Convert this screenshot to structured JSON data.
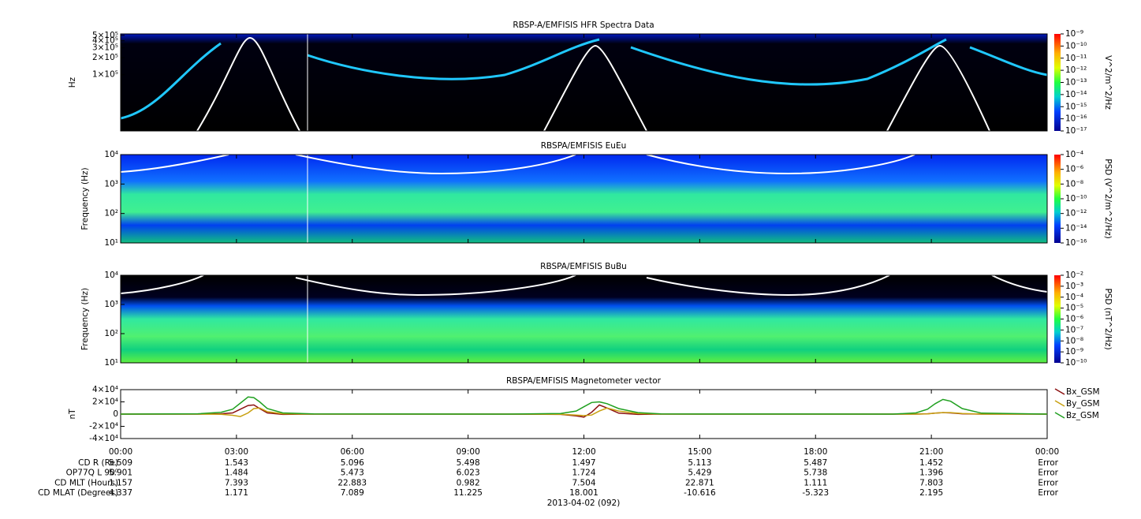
{
  "chart_data": [
    {
      "type": "spectrogram",
      "title": "RBSP-A/EMFISIS  HFR Spectra Data",
      "ylabel": "Hz",
      "log_y": true,
      "ylim": [
        10000,
        530000
      ],
      "yticks": [
        {
          "value": 100000,
          "label": "1×10⁵"
        },
        {
          "value": 200000,
          "label": "2×10⁵"
        },
        {
          "value": 300000,
          "label": "3×10⁵"
        },
        {
          "value": 400000,
          "label": "4×10⁵"
        },
        {
          "value": 500000,
          "label": "5×10⁵"
        }
      ],
      "colorbar_label": "V^2/m^2/Hz",
      "clim": [
        1e-17,
        1e-09
      ],
      "cticks": [
        {
          "value": 1e-09,
          "label": "10⁻⁹"
        },
        {
          "value": 1e-10,
          "label": "10⁻¹⁰"
        },
        {
          "value": 1e-11,
          "label": "10⁻¹¹"
        },
        {
          "value": 1e-12,
          "label": "10⁻¹²"
        },
        {
          "value": 1e-13,
          "label": "10⁻¹³"
        },
        {
          "value": 1e-14,
          "label": "10⁻¹⁴"
        },
        {
          "value": 1e-15,
          "label": "10⁻¹⁵"
        },
        {
          "value": 1e-16,
          "label": "10⁻¹⁶"
        },
        {
          "value": 1e-17,
          "label": "10⁻¹⁷"
        }
      ]
    },
    {
      "type": "spectrogram",
      "title": "RBSPA/EMFISIS  EuEu",
      "ylabel": "Frequency (Hz)",
      "log_y": true,
      "ylim": [
        10,
        10000
      ],
      "yticks": [
        {
          "value": 10,
          "label": "10¹"
        },
        {
          "value": 100,
          "label": "10²"
        },
        {
          "value": 1000,
          "label": "10³"
        },
        {
          "value": 10000,
          "label": "10⁴"
        }
      ],
      "colorbar_label": "PSD (V^2/m^2/Hz)",
      "clim": [
        1e-16,
        0.0001
      ],
      "cticks": [
        {
          "value": 0.0001,
          "label": "10⁻⁴"
        },
        {
          "value": 1e-06,
          "label": "10⁻⁶"
        },
        {
          "value": 1e-08,
          "label": "10⁻⁸"
        },
        {
          "value": 1e-10,
          "label": "10⁻¹⁰"
        },
        {
          "value": 1e-12,
          "label": "10⁻¹²"
        },
        {
          "value": 1e-14,
          "label": "10⁻¹⁴"
        },
        {
          "value": 1e-16,
          "label": "10⁻¹⁶"
        }
      ]
    },
    {
      "type": "spectrogram",
      "title": "RBSPA/EMFISIS  BuBu",
      "ylabel": "Frequency (Hz)",
      "log_y": true,
      "ylim": [
        10,
        10000
      ],
      "yticks": [
        {
          "value": 10,
          "label": "10¹"
        },
        {
          "value": 100,
          "label": "10²"
        },
        {
          "value": 1000,
          "label": "10³"
        },
        {
          "value": 10000,
          "label": "10⁴"
        }
      ],
      "colorbar_label": "PSD (nT^2/Hz)",
      "clim": [
        1e-10,
        0.01
      ],
      "cticks": [
        {
          "value": 0.01,
          "label": "10⁻²"
        },
        {
          "value": 0.001,
          "label": "10⁻³"
        },
        {
          "value": 0.0001,
          "label": "10⁻⁴"
        },
        {
          "value": 1e-05,
          "label": "10⁻⁵"
        },
        {
          "value": 1e-06,
          "label": "10⁻⁶"
        },
        {
          "value": 1e-07,
          "label": "10⁻⁷"
        },
        {
          "value": 1e-08,
          "label": "10⁻⁸"
        },
        {
          "value": 1e-09,
          "label": "10⁻⁹"
        },
        {
          "value": 1e-10,
          "label": "10⁻¹⁰"
        }
      ]
    },
    {
      "type": "line",
      "title": "RBSPA/EMFISIS  Magnetometer vector",
      "ylabel": "nT",
      "ylim": [
        -40000,
        40000
      ],
      "yticks": [
        {
          "value": 40000,
          "label": "4×10⁴"
        },
        {
          "value": 20000,
          "label": "2×10⁴"
        },
        0,
        {
          "value": -20000,
          "label": "-2×10⁴"
        },
        {
          "value": -40000,
          "label": "-4×10⁴"
        }
      ],
      "xlim": [
        0,
        24
      ],
      "xticks": [
        {
          "value": 0,
          "label": "00:00"
        },
        {
          "value": 3,
          "label": "03:00"
        },
        {
          "value": 6,
          "label": "06:00"
        },
        {
          "value": 9,
          "label": "09:00"
        },
        {
          "value": 12,
          "label": "12:00"
        },
        {
          "value": 15,
          "label": "15:00"
        },
        {
          "value": 18,
          "label": "18:00"
        },
        {
          "value": 21,
          "label": "21:00"
        },
        {
          "value": 24,
          "label": "00:00"
        }
      ],
      "x": [
        0,
        2,
        2.6,
        2.9,
        3.1,
        3.3,
        3.45,
        3.6,
        3.8,
        4.2,
        5,
        10,
        11.4,
        11.8,
        12.0,
        12.2,
        12.4,
        12.6,
        12.9,
        13.4,
        14,
        20,
        20.6,
        20.9,
        21.1,
        21.3,
        21.5,
        21.8,
        22.3,
        24
      ],
      "series": [
        {
          "name": "Bx_GSM",
          "color": "#8b1010",
          "values": [
            0,
            0,
            500,
            2000,
            8000,
            14000,
            15000,
            9000,
            2000,
            -500,
            0,
            0,
            -500,
            -3000,
            -5000,
            3000,
            15000,
            10000,
            1500,
            -500,
            0,
            0,
            0,
            500,
            1500,
            2500,
            2000,
            500,
            0,
            0
          ]
        },
        {
          "name": "By_GSM",
          "color": "#c8a010",
          "values": [
            0,
            0,
            -300,
            -2000,
            -4000,
            2000,
            9000,
            10000,
            4000,
            500,
            0,
            0,
            -300,
            -1500,
            -2500,
            -1500,
            5000,
            10000,
            5000,
            1000,
            0,
            0,
            0,
            300,
            1500,
            2500,
            2500,
            1000,
            0,
            0
          ]
        },
        {
          "name": "Bz_GSM",
          "color": "#20a020",
          "values": [
            0,
            500,
            3000,
            8000,
            18000,
            28000,
            27000,
            20000,
            9000,
            2000,
            200,
            0,
            1000,
            5000,
            12000,
            19000,
            20000,
            17000,
            9000,
            2500,
            200,
            0,
            2000,
            8000,
            17000,
            24000,
            21000,
            9000,
            1500,
            0
          ]
        }
      ]
    }
  ],
  "ephemeris": {
    "rows": [
      {
        "label": "CD R (Re)",
        "values": [
          5.509,
          1.543,
          5.096,
          5.498,
          1.497,
          5.113,
          5.487,
          1.452,
          "Error"
        ]
      },
      {
        "label": "OP77Q L 90⁰",
        "values": [
          5.901,
          1.484,
          5.473,
          6.023,
          1.724,
          5.429,
          5.738,
          1.396,
          "Error"
        ]
      },
      {
        "label": "CD MLT (Hours)",
        "values": [
          1.157,
          7.393,
          22.883,
          0.982,
          7.504,
          22.871,
          1.111,
          7.803,
          "Error"
        ]
      },
      {
        "label": "CD MLAT (Degrees)",
        "values": [
          4.337,
          1.171,
          7.089,
          11.225,
          18.001,
          -10.616,
          -5.323,
          2.195,
          "Error"
        ]
      }
    ]
  },
  "date": "2013-04-02 (092)"
}
